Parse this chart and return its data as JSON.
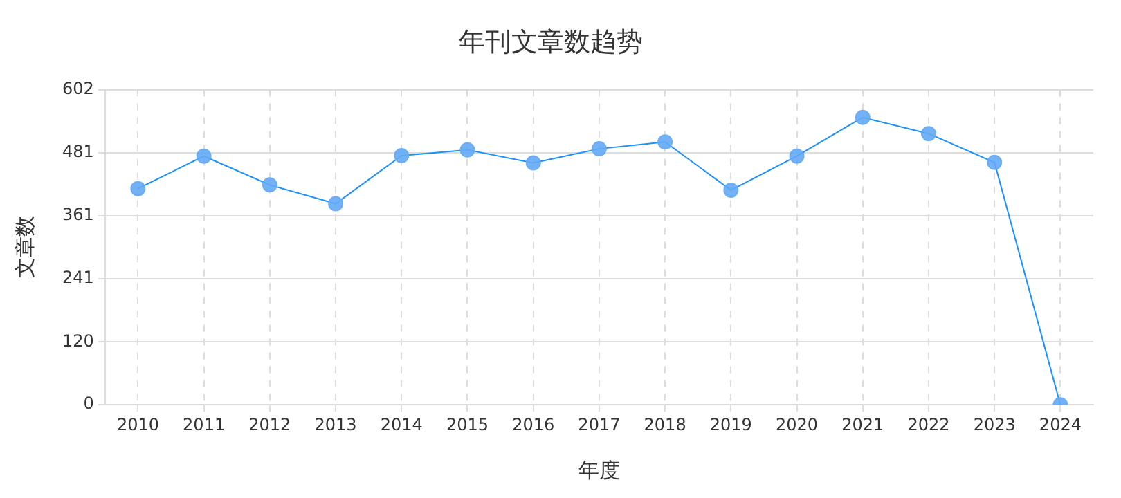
{
  "chart_data": {
    "type": "line",
    "title": "年刊文章数趋势",
    "xlabel": "年度",
    "ylabel": "文章数",
    "categories": [
      "2010",
      "2011",
      "2012",
      "2013",
      "2014",
      "2015",
      "2016",
      "2017",
      "2018",
      "2019",
      "2020",
      "2021",
      "2022",
      "2023",
      "2024"
    ],
    "series": [
      {
        "color": "#1890ff",
        "values": [
          413,
          475,
          420,
          384,
          476,
          487,
          462,
          489,
          502,
          410,
          475,
          549,
          518,
          463,
          0
        ]
      }
    ],
    "ylim": [
      0,
      602
    ],
    "yticks": [
      0,
      120,
      241,
      361,
      481,
      602
    ],
    "grid": true,
    "legend": false,
    "marker": "circle",
    "line_style": "solid"
  }
}
